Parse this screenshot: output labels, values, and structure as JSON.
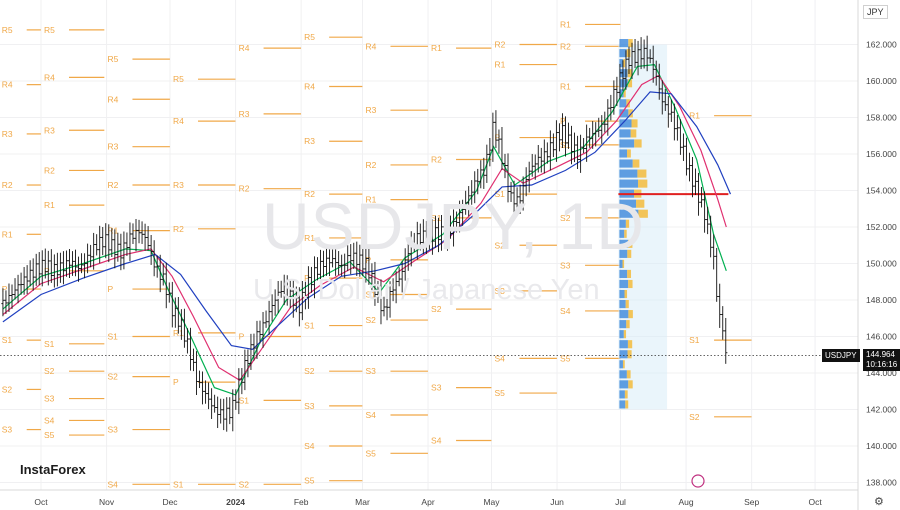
{
  "header": {
    "currency_button": "JPY"
  },
  "watermark": {
    "symbol": "USDJPY, 1D",
    "name": "U.S. Dollar / Japanese Yen"
  },
  "brand": {
    "logo_text": "InstaForex"
  },
  "price_tag": {
    "symbol": "USDJPY",
    "price": "144.964",
    "countdown": "10:16:16"
  },
  "colors": {
    "pivot": "#f0a848",
    "ema_fast": "#00b050",
    "ema_mid": "#e03070",
    "ema_slow": "#2040c0",
    "volume_profile": "#d8ecf8",
    "poc": "#e02020"
  },
  "chart_data": {
    "type": "candlestick",
    "symbol": "USDJPY",
    "timeframe": "1D",
    "ylim": [
      137.5,
      163.2
    ],
    "y_ticks": [
      "162.000",
      "160.000",
      "158.000",
      "156.000",
      "154.000",
      "152.000",
      "150.000",
      "148.000",
      "146.000",
      "144.000",
      "142.000",
      "140.000",
      "138.000"
    ],
    "y_tick_values": [
      162,
      160,
      158,
      156,
      154,
      152,
      150,
      148,
      146,
      144,
      142,
      140,
      138
    ],
    "x_labels": [
      {
        "label": "Oct",
        "day": 0
      },
      {
        "label": "Nov",
        "day": 31
      },
      {
        "label": "Dec",
        "day": 61
      },
      {
        "label": "2024",
        "day": 92
      },
      {
        "label": "Feb",
        "day": 123
      },
      {
        "label": "Mar",
        "day": 152
      },
      {
        "label": "Apr",
        "day": 183
      },
      {
        "label": "May",
        "day": 213
      },
      {
        "label": "Jun",
        "day": 244
      },
      {
        "label": "Jul",
        "day": 274
      },
      {
        "label": "Aug",
        "day": 305
      },
      {
        "label": "Sep",
        "day": 336
      },
      {
        "label": "Oct",
        "day": 366
      }
    ],
    "close_path": [
      [
        -18,
        147.8
      ],
      [
        -14,
        148.3
      ],
      [
        -10,
        148.9
      ],
      [
        -6,
        149.3
      ],
      [
        -2,
        149.7
      ],
      [
        2,
        149.9
      ],
      [
        6,
        149.6
      ],
      [
        10,
        149.8
      ],
      [
        14,
        150.1
      ],
      [
        18,
        149.7
      ],
      [
        22,
        150.3
      ],
      [
        26,
        151.0
      ],
      [
        30,
        151.3
      ],
      [
        34,
        150.9
      ],
      [
        38,
        150.6
      ],
      [
        42,
        151.4
      ],
      [
        46,
        151.8
      ],
      [
        50,
        151.3
      ],
      [
        54,
        149.8
      ],
      [
        58,
        149.1
      ],
      [
        62,
        147.5
      ],
      [
        66,
        146.7
      ],
      [
        70,
        145.3
      ],
      [
        74,
        143.5
      ],
      [
        78,
        142.8
      ],
      [
        82,
        142.0
      ],
      [
        86,
        141.7
      ],
      [
        90,
        141.9
      ],
      [
        94,
        143.5
      ],
      [
        98,
        144.9
      ],
      [
        102,
        146.0
      ],
      [
        106,
        146.8
      ],
      [
        110,
        147.9
      ],
      [
        114,
        148.7
      ],
      [
        118,
        148.2
      ],
      [
        122,
        147.6
      ],
      [
        126,
        148.8
      ],
      [
        130,
        149.6
      ],
      [
        134,
        150.1
      ],
      [
        138,
        150.2
      ],
      [
        142,
        149.8
      ],
      [
        146,
        150.4
      ],
      [
        150,
        150.2
      ],
      [
        154,
        149.9
      ],
      [
        158,
        148.6
      ],
      [
        162,
        147.3
      ],
      [
        166,
        148.6
      ],
      [
        170,
        149.3
      ],
      [
        174,
        150.8
      ],
      [
        178,
        151.4
      ],
      [
        182,
        151.5
      ],
      [
        186,
        151.6
      ],
      [
        190,
        151.7
      ],
      [
        194,
        151.9
      ],
      [
        198,
        152.7
      ],
      [
        202,
        153.6
      ],
      [
        206,
        154.6
      ],
      [
        210,
        155.2
      ],
      [
        214,
        157.6
      ],
      [
        218,
        155.8
      ],
      [
        222,
        153.6
      ],
      [
        226,
        153.4
      ],
      [
        230,
        154.9
      ],
      [
        234,
        155.6
      ],
      [
        238,
        155.9
      ],
      [
        242,
        156.5
      ],
      [
        246,
        157.3
      ],
      [
        250,
        156.6
      ],
      [
        254,
        155.9
      ],
      [
        258,
        156.8
      ],
      [
        262,
        157.2
      ],
      [
        266,
        157.6
      ],
      [
        270,
        159.0
      ],
      [
        274,
        160.2
      ],
      [
        278,
        161.2
      ],
      [
        282,
        161.4
      ],
      [
        286,
        161.6
      ],
      [
        290,
        160.6
      ],
      [
        294,
        158.8
      ],
      [
        298,
        158.1
      ],
      [
        302,
        156.8
      ],
      [
        306,
        155.2
      ],
      [
        310,
        154.0
      ],
      [
        314,
        152.6
      ],
      [
        318,
        150.3
      ],
      [
        320,
        147.6
      ],
      [
        322,
        146.6
      ],
      [
        324,
        144.96
      ]
    ],
    "ema_fast": [
      [
        -18,
        147.5
      ],
      [
        0,
        149.3
      ],
      [
        20,
        150.0
      ],
      [
        40,
        150.8
      ],
      [
        52,
        150.7
      ],
      [
        60,
        148.6
      ],
      [
        70,
        146.2
      ],
      [
        82,
        143.2
      ],
      [
        92,
        142.8
      ],
      [
        104,
        145.8
      ],
      [
        116,
        148.0
      ],
      [
        130,
        149.1
      ],
      [
        146,
        150.1
      ],
      [
        160,
        148.4
      ],
      [
        172,
        150.3
      ],
      [
        190,
        151.6
      ],
      [
        206,
        154.0
      ],
      [
        214,
        156.4
      ],
      [
        224,
        154.3
      ],
      [
        240,
        155.6
      ],
      [
        256,
        156.3
      ],
      [
        270,
        158.3
      ],
      [
        282,
        160.8
      ],
      [
        290,
        160.9
      ],
      [
        300,
        158.5
      ],
      [
        310,
        155.7
      ],
      [
        318,
        151.6
      ],
      [
        324,
        149.6
      ]
    ],
    "ema_mid": [
      [
        -18,
        147.2
      ],
      [
        0,
        148.9
      ],
      [
        20,
        149.7
      ],
      [
        40,
        150.5
      ],
      [
        52,
        150.8
      ],
      [
        62,
        149.3
      ],
      [
        72,
        147.1
      ],
      [
        84,
        144.3
      ],
      [
        94,
        143.6
      ],
      [
        106,
        145.6
      ],
      [
        118,
        147.6
      ],
      [
        132,
        148.8
      ],
      [
        148,
        149.8
      ],
      [
        162,
        149.0
      ],
      [
        176,
        150.1
      ],
      [
        192,
        151.3
      ],
      [
        208,
        153.3
      ],
      [
        218,
        155.2
      ],
      [
        228,
        154.4
      ],
      [
        244,
        155.3
      ],
      [
        258,
        156.1
      ],
      [
        272,
        157.8
      ],
      [
        284,
        159.8
      ],
      [
        292,
        160.3
      ],
      [
        302,
        158.6
      ],
      [
        312,
        156.2
      ],
      [
        320,
        153.5
      ],
      [
        324,
        152.0
      ]
    ],
    "ema_slow": [
      [
        -18,
        146.8
      ],
      [
        0,
        148.3
      ],
      [
        20,
        149.2
      ],
      [
        40,
        150.0
      ],
      [
        54,
        150.5
      ],
      [
        66,
        149.4
      ],
      [
        78,
        147.4
      ],
      [
        90,
        145.5
      ],
      [
        100,
        145.3
      ],
      [
        112,
        146.6
      ],
      [
        126,
        148.1
      ],
      [
        142,
        149.3
      ],
      [
        158,
        149.6
      ],
      [
        172,
        150.0
      ],
      [
        188,
        151.0
      ],
      [
        204,
        152.6
      ],
      [
        218,
        154.2
      ],
      [
        232,
        154.3
      ],
      [
        248,
        155.1
      ],
      [
        262,
        156.1
      ],
      [
        276,
        157.8
      ],
      [
        288,
        159.4
      ],
      [
        298,
        159.3
      ],
      [
        310,
        157.5
      ],
      [
        320,
        155.4
      ],
      [
        326,
        153.8
      ]
    ],
    "volume_profile": {
      "day_start": 273,
      "day_end": 296,
      "price_low": 142.0,
      "price_high": 162.0,
      "poc_price": 153.8,
      "poc_day_end": 325
    },
    "pivot_levels": [
      {
        "start": -20,
        "end": -1,
        "levels": [
          [
            "R5",
            162.8
          ],
          [
            "R4",
            159.8
          ],
          [
            "R3",
            157.1
          ],
          [
            "R2",
            154.3
          ],
          [
            "R1",
            151.6
          ],
          [
            "P",
            148.6
          ],
          [
            "S1",
            145.8
          ],
          [
            "S2",
            143.1
          ],
          [
            "S3",
            140.9
          ]
        ]
      },
      {
        "start": 0,
        "end": 29,
        "levels": [
          [
            "R5",
            162.8
          ],
          [
            "R4",
            160.2
          ],
          [
            "R3",
            157.3
          ],
          [
            "R2",
            155.1
          ],
          [
            "R1",
            153.2
          ],
          [
            "P",
            149.6
          ],
          [
            "S1",
            145.6
          ],
          [
            "S2",
            144.1
          ],
          [
            "S3",
            142.6
          ],
          [
            "S4",
            141.4
          ],
          [
            "S5",
            140.6
          ]
        ]
      },
      {
        "start": 30,
        "end": 60,
        "levels": [
          [
            "R5",
            161.2
          ],
          [
            "R4",
            159.0
          ],
          [
            "R3",
            156.4
          ],
          [
            "R2",
            154.3
          ],
          [
            "R1",
            151.8
          ],
          [
            "P",
            148.6
          ],
          [
            "S1",
            146.0
          ],
          [
            "S2",
            143.8
          ],
          [
            "S3",
            140.9
          ],
          [
            "S4",
            137.9
          ]
        ]
      },
      {
        "start": 61,
        "end": 91,
        "levels": [
          [
            "R5",
            160.1
          ],
          [
            "R4",
            157.8
          ],
          [
            "R3",
            154.3
          ],
          [
            "R2",
            151.9
          ],
          [
            "R1",
            146.2
          ],
          [
            "P",
            143.5
          ],
          [
            "S1",
            137.9
          ]
        ]
      },
      {
        "start": 92,
        "end": 122,
        "levels": [
          [
            "R4",
            161.8
          ],
          [
            "R3",
            158.2
          ],
          [
            "R2",
            154.1
          ],
          [
            "P",
            146.0
          ],
          [
            "S1",
            142.5
          ],
          [
            "S2",
            137.9
          ]
        ]
      },
      {
        "start": 123,
        "end": 151,
        "levels": [
          [
            "R5",
            162.4
          ],
          [
            "R4",
            159.7
          ],
          [
            "R3",
            156.7
          ],
          [
            "R2",
            153.8
          ],
          [
            "R1",
            151.4
          ],
          [
            "P",
            149.2
          ],
          [
            "S1",
            146.6
          ],
          [
            "S2",
            144.1
          ],
          [
            "S3",
            142.2
          ],
          [
            "S4",
            140.0
          ],
          [
            "S5",
            138.1
          ]
        ]
      },
      {
        "start": 152,
        "end": 182,
        "levels": [
          [
            "R4",
            161.9
          ],
          [
            "R3",
            158.4
          ],
          [
            "R2",
            155.4
          ],
          [
            "R1",
            153.5
          ],
          [
            "P",
            150.2
          ],
          [
            "S1",
            148.3
          ],
          [
            "S2",
            146.9
          ],
          [
            "S3",
            144.1
          ],
          [
            "S4",
            141.7
          ],
          [
            "S5",
            139.6
          ]
        ]
      },
      {
        "start": 183,
        "end": 212,
        "levels": [
          [
            "R1",
            161.8
          ],
          [
            "R2",
            155.7
          ],
          [
            "S1",
            152.5
          ],
          [
            "S2",
            147.5
          ],
          [
            "S3",
            143.2
          ],
          [
            "S4",
            140.3
          ]
        ]
      },
      {
        "start": 213,
        "end": 243,
        "levels": [
          [
            "R2",
            162.0
          ],
          [
            "R1",
            160.9
          ],
          [
            "P",
            156.9
          ],
          [
            "S1",
            153.8
          ],
          [
            "S2",
            151.0
          ],
          [
            "S3",
            148.5
          ],
          [
            "S4",
            144.8
          ],
          [
            "S5",
            142.9
          ]
        ]
      },
      {
        "start": 244,
        "end": 273,
        "levels": [
          [
            "R1",
            163.1
          ],
          [
            "R2",
            161.9
          ],
          [
            "R1",
            159.7
          ],
          [
            "P",
            157.8
          ],
          [
            "S1",
            156.5
          ],
          [
            "S2",
            152.5
          ],
          [
            "S3",
            149.9
          ],
          [
            "S4",
            147.4
          ],
          [
            "S5",
            144.8
          ]
        ]
      },
      {
        "start": 305,
        "end": 335,
        "levels": [
          [
            "R1",
            158.1
          ],
          [
            "S1",
            145.8
          ],
          [
            "S2",
            141.6
          ]
        ]
      }
    ]
  }
}
